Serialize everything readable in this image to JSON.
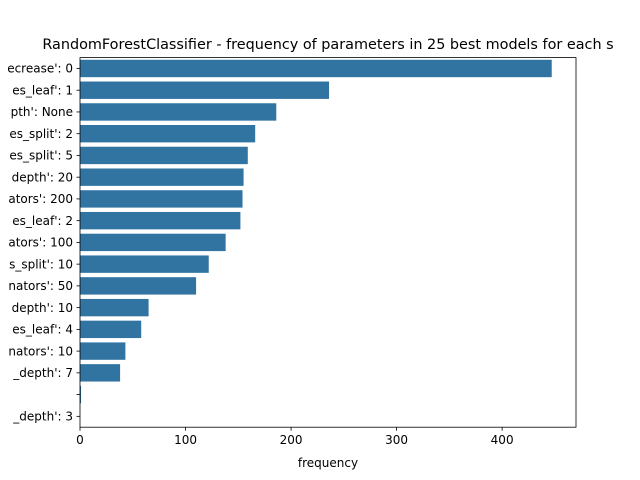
{
  "chart_data": {
    "type": "bar",
    "orientation": "horizontal",
    "title": "RandomForestClassifier - frequency of parameters in 25 best models for each s",
    "xlabel": "frequency",
    "ylabel": "",
    "categories": [
      "ecrease': 0",
      "es_leaf': 1",
      "pth': None",
      "es_split': 2",
      "es_split': 5",
      "depth': 20",
      "ators': 200",
      "es_leaf': 2",
      "ators': 100",
      "s_split': 10",
      "nators': 50",
      "depth': 10",
      "es_leaf': 4",
      "nators': 10",
      "_depth': 7",
      "",
      "_depth': 3"
    ],
    "values": [
      447,
      236,
      186,
      166,
      159,
      155,
      154,
      152,
      138,
      122,
      110,
      65,
      58,
      43,
      38,
      1,
      0
    ],
    "xlim": [
      0,
      470
    ],
    "xticks": [
      0,
      100,
      200,
      300,
      400
    ],
    "bar_color": "#3274a1",
    "grid": false,
    "legend": "none"
  }
}
